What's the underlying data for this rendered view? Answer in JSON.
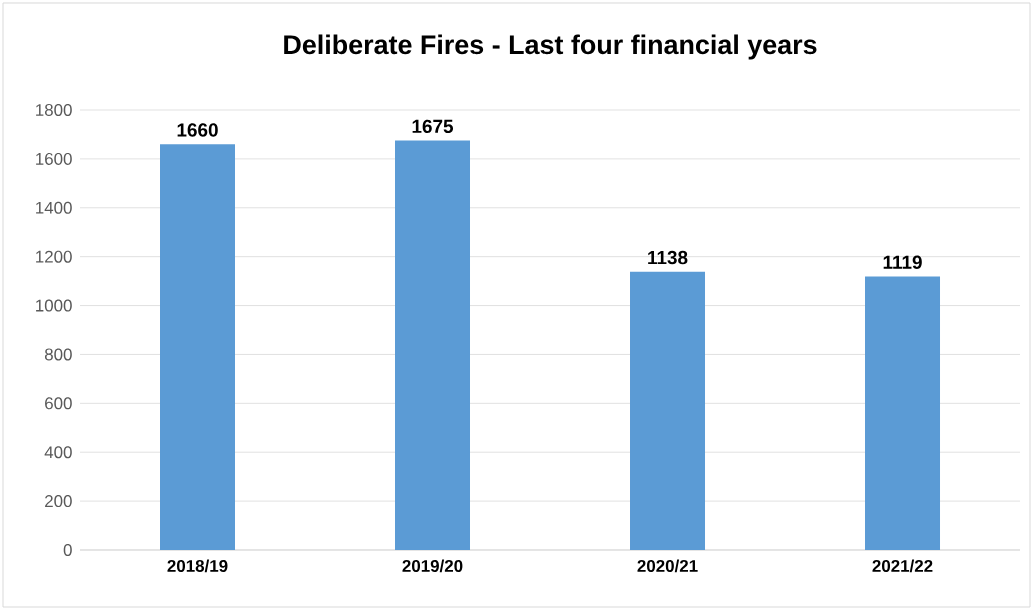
{
  "chart_data": {
    "type": "bar",
    "title": "Deliberate Fires - Last four financial years",
    "categories": [
      "2018/19",
      "2019/20",
      "2020/21",
      "2021/22"
    ],
    "values": [
      1660,
      1675,
      1138,
      1119
    ],
    "color": "#5b9bd5",
    "ylim": [
      0,
      1800
    ],
    "yticks": [
      0,
      200,
      400,
      600,
      800,
      1000,
      1200,
      1400,
      1600,
      1800
    ],
    "grid": "y",
    "data_labels": true
  }
}
